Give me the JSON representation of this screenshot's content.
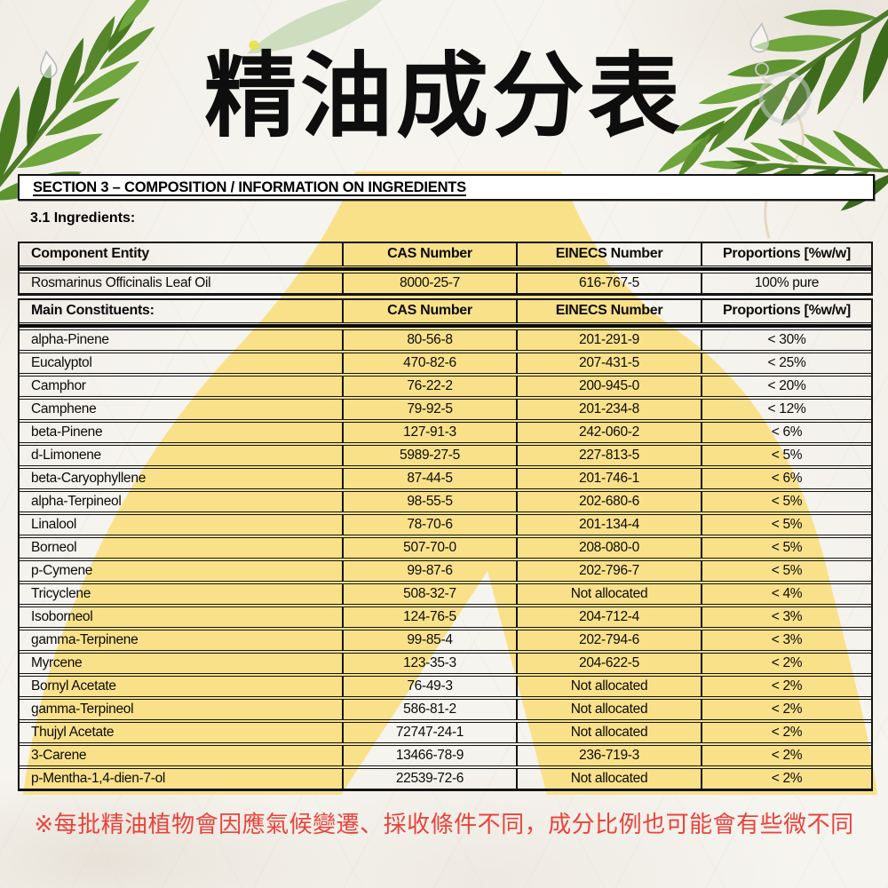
{
  "title": "精油成分表",
  "section_header": "SECTION 3 – COMPOSITION / INFORMATION ON INGREDIENTS",
  "subsection": "3.1 Ingredients:",
  "footnote": "※每批精油植物會因應氣候變遷、採收條件不同，成分比例也可能會有些微不同",
  "colors": {
    "accent_yellow": "#F9E18A",
    "note_red": "#E7443C",
    "leaf_green_dark": "#3C6A1B",
    "leaf_green": "#55862C",
    "leaf_green_light": "#6FA63D",
    "table_border": "#141414",
    "paper": "#F6F4EF"
  },
  "decor_icons": [
    "rosemary-sprig",
    "water-droplet",
    "oil-drop-needle",
    "yellow-blob"
  ],
  "tables": {
    "ingredients": {
      "headers": [
        "Component Entity",
        "CAS Number",
        "EINECS Number",
        "Proportions [%w/w]"
      ],
      "rows": [
        [
          "Rosmarinus Officinalis Leaf Oil",
          "8000-25-7",
          "616-767-5",
          "100% pure"
        ]
      ]
    },
    "constituents": {
      "headers": [
        "Main Constituents:",
        "CAS Number",
        "EINECS Number",
        "Proportions [%w/w]"
      ],
      "rows": [
        [
          "alpha-Pinene",
          "80-56-8",
          "201-291-9",
          "< 30%"
        ],
        [
          "Eucalyptol",
          "470-82-6",
          "207-431-5",
          "< 25%"
        ],
        [
          "Camphor",
          "76-22-2",
          "200-945-0",
          "< 20%"
        ],
        [
          "Camphene",
          "79-92-5",
          "201-234-8",
          "< 12%"
        ],
        [
          "beta-Pinene",
          "127-91-3",
          "242-060-2",
          "< 6%"
        ],
        [
          "d-Limonene",
          "5989-27-5",
          "227-813-5",
          "< 5%"
        ],
        [
          "beta-Caryophyllene",
          "87-44-5",
          "201-746-1",
          "< 6%"
        ],
        [
          "alpha-Terpineol",
          "98-55-5",
          "202-680-6",
          "< 5%"
        ],
        [
          "Linalool",
          "78-70-6",
          "201-134-4",
          "< 5%"
        ],
        [
          "Borneol",
          "507-70-0",
          "208-080-0",
          "< 5%"
        ],
        [
          "p-Cymene",
          "99-87-6",
          "202-796-7",
          "< 5%"
        ],
        [
          "Tricyclene",
          "508-32-7",
          "Not allocated",
          "< 4%"
        ],
        [
          "Isoborneol",
          "124-76-5",
          "204-712-4",
          "< 3%"
        ],
        [
          "gamma-Terpinene",
          "99-85-4",
          "202-794-6",
          "< 3%"
        ],
        [
          "Myrcene",
          "123-35-3",
          "204-622-5",
          "< 2%"
        ],
        [
          "Bornyl Acetate",
          "76-49-3",
          "Not allocated",
          "< 2%"
        ],
        [
          "gamma-Terpineol",
          "586-81-2",
          "Not allocated",
          "< 2%"
        ],
        [
          "Thujyl Acetate",
          "72747-24-1",
          "Not allocated",
          "< 2%"
        ],
        [
          "3-Carene",
          "13466-78-9",
          "236-719-3",
          "< 2%"
        ],
        [
          "p-Mentha-1,4-dien-7-ol",
          "22539-72-6",
          "Not allocated",
          "< 2%"
        ]
      ]
    }
  }
}
